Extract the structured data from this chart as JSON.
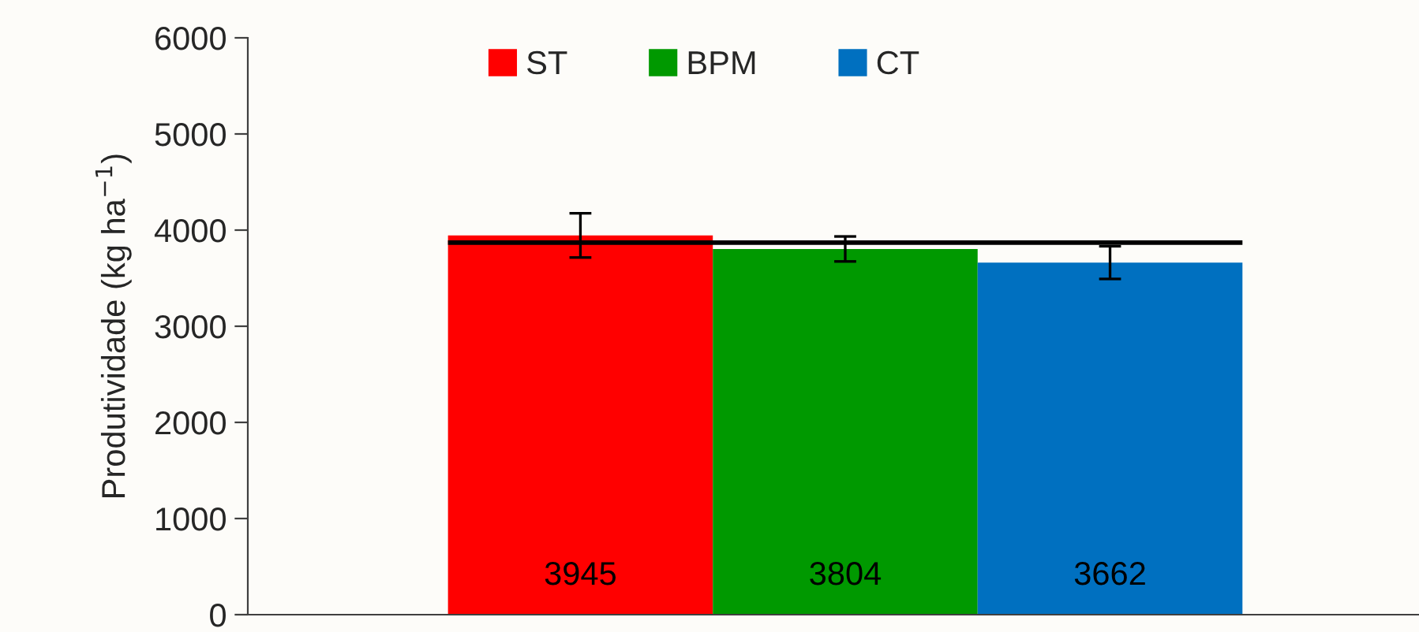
{
  "chart_data": {
    "type": "bar",
    "ylabel": "Produtividade (kg ha$^{−1}$)",
    "categories": [
      null
    ],
    "series": [
      {
        "name": "ST",
        "color": "#ff0000",
        "values": [
          3945
        ],
        "errors": [
          230
        ]
      },
      {
        "name": "BPM",
        "color": "#009900",
        "values": [
          3804
        ],
        "errors": [
          130
        ]
      },
      {
        "name": "CT",
        "color": "#0070c0",
        "values": [
          3662
        ],
        "errors": [
          170
        ]
      }
    ],
    "ylim": [
      0,
      6000
    ],
    "yticks": [
      0,
      1000,
      2000,
      3000,
      4000,
      5000,
      6000
    ],
    "ref_lines": [
      {
        "axis": "y",
        "value": 3870,
        "color": "#000000"
      }
    ],
    "data_labels": true,
    "legend": "top",
    "grid": false
  }
}
